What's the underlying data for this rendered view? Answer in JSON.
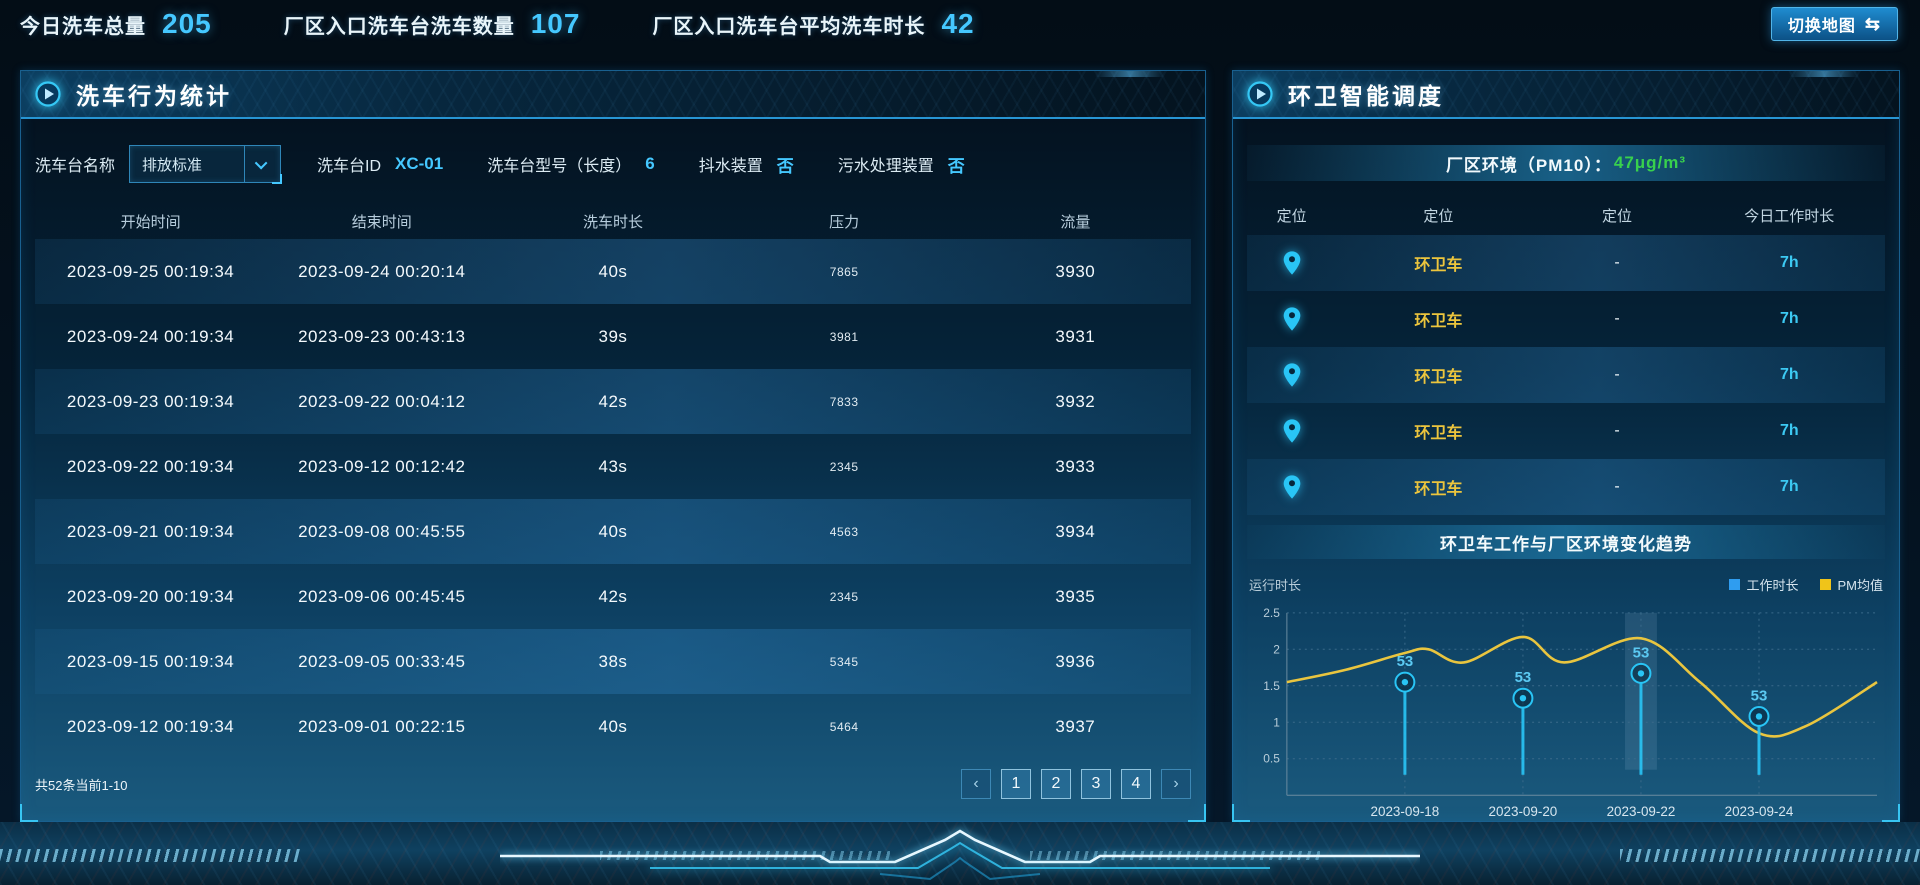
{
  "top_bar": {
    "stats": [
      {
        "label": "今日洗车总量",
        "value": "205"
      },
      {
        "label": "厂区入口洗车台洗车数量",
        "value": "107"
      },
      {
        "label": "厂区入口洗车台平均洗车时长",
        "value": "42"
      }
    ],
    "switch_map_label": "切换地图",
    "switch_map_icon": "⇆"
  },
  "left_panel": {
    "title": "洗车行为统计",
    "filters": {
      "name_label": "洗车台名称",
      "name_value": "排放标准",
      "id_label": "洗车台ID",
      "id_value": "XC-01",
      "model_label": "洗车台型号（长度）",
      "model_value": "6",
      "shake_label": "抖水装置",
      "shake_value": "否",
      "sewage_label": "污水处理装置",
      "sewage_value": "否"
    },
    "table": {
      "columns": [
        "开始时间",
        "结束时间",
        "洗车时长",
        "压力",
        "流量"
      ],
      "rows": [
        [
          "2023-09-25 00:19:34",
          "2023-09-24 00:20:14",
          "40s",
          "7865",
          "3930"
        ],
        [
          "2023-09-24 00:19:34",
          "2023-09-23 00:43:13",
          "39s",
          "3981",
          "3931"
        ],
        [
          "2023-09-23 00:19:34",
          "2023-09-22 00:04:12",
          "42s",
          "7833",
          "3932"
        ],
        [
          "2023-09-22 00:19:34",
          "2023-09-12 00:12:42",
          "43s",
          "2345",
          "3933"
        ],
        [
          "2023-09-21 00:19:34",
          "2023-09-08 00:45:55",
          "40s",
          "4563",
          "3934"
        ],
        [
          "2023-09-20 00:19:34",
          "2023-09-06 00:45:45",
          "42s",
          "2345",
          "3935"
        ],
        [
          "2023-09-15 00:19:34",
          "2023-09-05 00:33:45",
          "38s",
          "5345",
          "3936"
        ],
        [
          "2023-09-12 00:19:34",
          "2023-09-01 00:22:15",
          "40s",
          "5464",
          "3937"
        ]
      ]
    },
    "pagination": {
      "summary": "共52条当前1-10",
      "prev": "‹",
      "next": "›",
      "pages": [
        "1",
        "2",
        "3",
        "4"
      ]
    }
  },
  "right_panel": {
    "title": "环卫智能调度",
    "env_banner": {
      "label": "厂区环境（PM10）：",
      "value": "47μg/m³"
    },
    "table": {
      "columns": [
        "定位",
        "定位",
        "定位",
        "今日工作时长"
      ],
      "rows": [
        {
          "icon": "map-pin-icon",
          "name": "环卫车",
          "dash": "-",
          "hours": "7h"
        },
        {
          "icon": "map-pin-icon",
          "name": "环卫车",
          "dash": "-",
          "hours": "7h"
        },
        {
          "icon": "map-pin-icon",
          "name": "环卫车",
          "dash": "-",
          "hours": "7h"
        },
        {
          "icon": "map-pin-icon",
          "name": "环卫车",
          "dash": "-",
          "hours": "7h"
        },
        {
          "icon": "map-pin-icon",
          "name": "环卫车",
          "dash": "-",
          "hours": "7h"
        }
      ]
    },
    "trend_title": "环卫车工作与厂区环境变化趋势"
  },
  "chart_data": {
    "type": "line",
    "title": "环卫车工作与厂区环境变化趋势",
    "ylabel": "运行时长",
    "x": [
      "2023-09-18",
      "2023-09-20",
      "2023-09-22",
      "2023-09-24"
    ],
    "yticks": [
      "2.5",
      "2",
      "1.5",
      "1",
      "0.5"
    ],
    "ylim": [
      0,
      2.5
    ],
    "grid": true,
    "legend_position": "top-right",
    "legend": [
      {
        "name": "工作时长",
        "color": "#2f9df0"
      },
      {
        "name": "PM均值",
        "color": "#f0c419"
      }
    ],
    "series": [
      {
        "name": "工作时长",
        "type": "scatter",
        "color": "#29c5f6",
        "values": [
          1.55,
          1.33,
          1.67,
          1.08
        ],
        "labels": [
          "53",
          "53",
          "53",
          "53"
        ]
      },
      {
        "name": "PM均值",
        "type": "line",
        "color": "#e9c53f",
        "points": [
          [
            -1,
            1.55
          ],
          [
            -0.5,
            1.72
          ],
          [
            0,
            1.95
          ],
          [
            0.2,
            2.0
          ],
          [
            0.5,
            1.82
          ],
          [
            1,
            2.17
          ],
          [
            1.35,
            1.82
          ],
          [
            2,
            2.15
          ],
          [
            2.5,
            1.55
          ],
          [
            3,
            0.85
          ],
          [
            3.4,
            0.95
          ],
          [
            4,
            1.55
          ]
        ]
      }
    ],
    "highlight_band_index": 2
  }
}
